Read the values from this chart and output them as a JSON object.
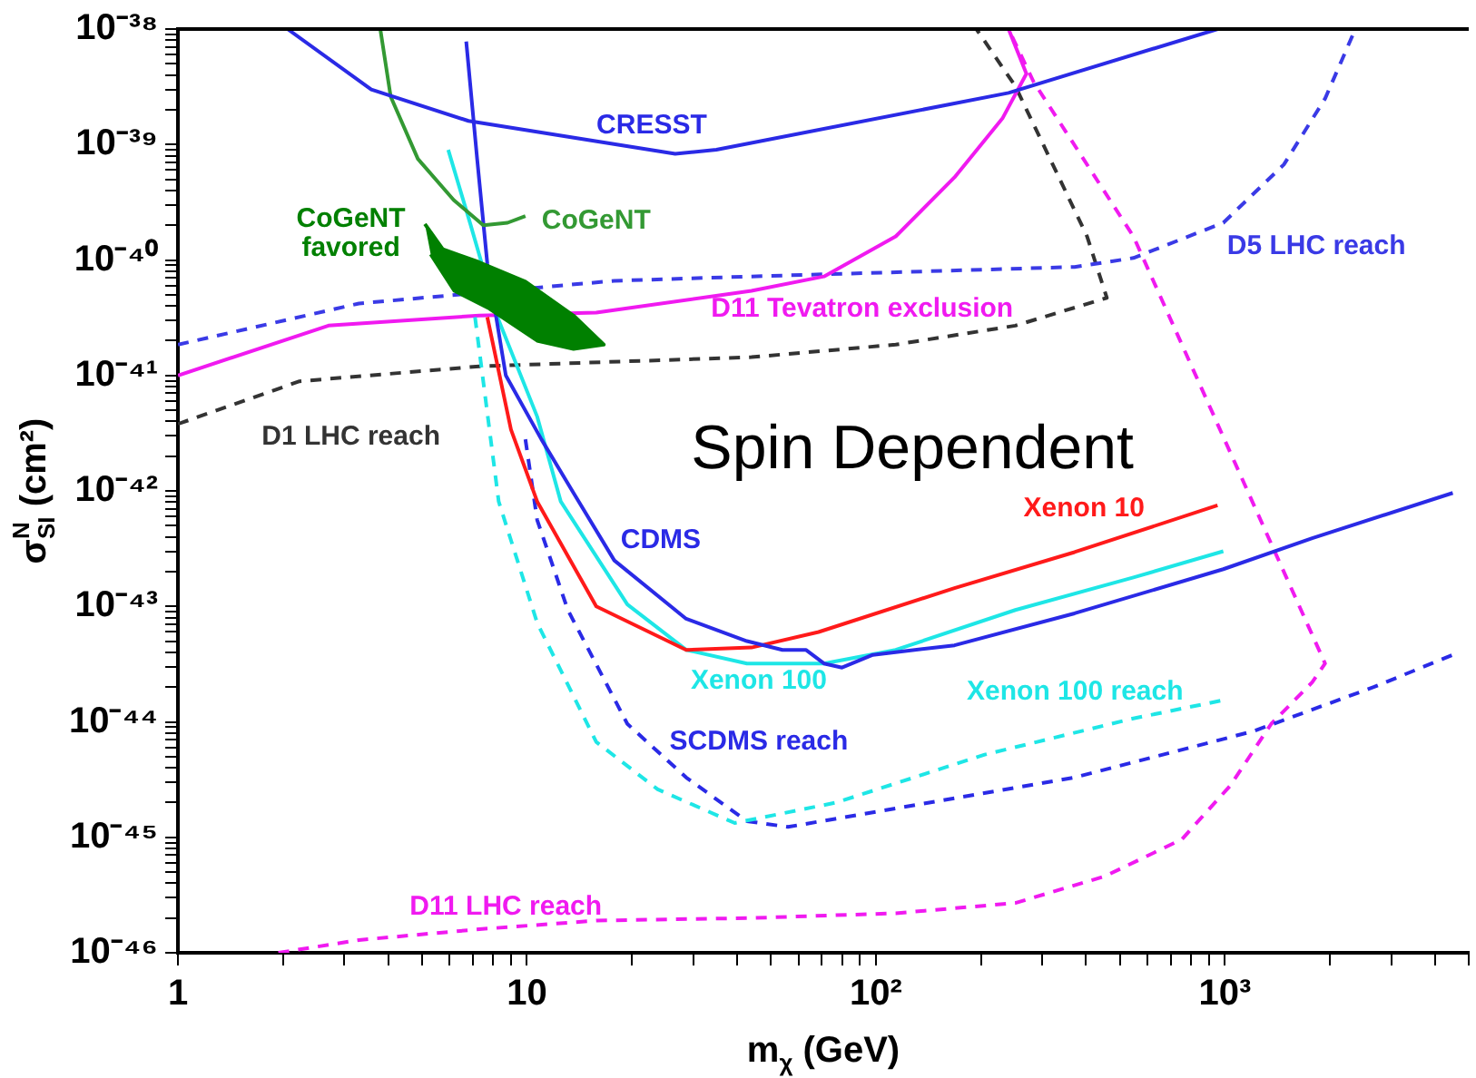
{
  "chart_data": {
    "type": "line",
    "xlabel": "m$_{χ}$ (GeV)",
    "ylabel": "σ$^{N}$$_{SI}$ (cm²)",
    "log": "xy",
    "grid": false,
    "legend": false,
    "marker": "none",
    "xlim": [
      1,
      5000
    ],
    "ylim": [
      1e-46,
      1e-38
    ],
    "xticks": [
      {
        "value": 1,
        "label": "1"
      },
      {
        "value": 2,
        "label": null
      },
      {
        "value": 3,
        "label": null
      },
      {
        "value": 4,
        "label": null
      },
      {
        "value": 5,
        "label": null
      },
      {
        "value": 6,
        "label": null
      },
      {
        "value": 7,
        "label": null
      },
      {
        "value": 8,
        "label": null
      },
      {
        "value": 9,
        "label": null
      },
      {
        "value": 10,
        "label": "10"
      },
      {
        "value": 20,
        "label": null
      },
      {
        "value": 30,
        "label": null
      },
      {
        "value": 40,
        "label": null
      },
      {
        "value": 50,
        "label": null
      },
      {
        "value": 60,
        "label": null
      },
      {
        "value": 70,
        "label": null
      },
      {
        "value": 80,
        "label": null
      },
      {
        "value": 90,
        "label": null
      },
      {
        "value": 100,
        "label": "10²"
      },
      {
        "value": 200,
        "label": null
      },
      {
        "value": 300,
        "label": null
      },
      {
        "value": 400,
        "label": null
      },
      {
        "value": 500,
        "label": null
      },
      {
        "value": 600,
        "label": null
      },
      {
        "value": 700,
        "label": null
      },
      {
        "value": 800,
        "label": null
      },
      {
        "value": 900,
        "label": null
      },
      {
        "value": 1000,
        "label": "10³"
      },
      {
        "value": 2000,
        "label": null
      },
      {
        "value": 3000,
        "label": null
      },
      {
        "value": 4000,
        "label": null
      },
      {
        "value": 5000,
        "label": null
      }
    ],
    "yticks": [
      {
        "value": 1e-46,
        "label": "10⁻⁴⁶"
      },
      {
        "value": 2e-46,
        "label": null
      },
      {
        "value": 3e-46,
        "label": null
      },
      {
        "value": 4e-46,
        "label": null
      },
      {
        "value": 5e-46,
        "label": null
      },
      {
        "value": 6e-46,
        "label": null
      },
      {
        "value": 7e-46,
        "label": null
      },
      {
        "value": 8e-46,
        "label": null
      },
      {
        "value": 9e-46,
        "label": null
      },
      {
        "value": 1e-45,
        "label": "10⁻⁴⁵"
      },
      {
        "value": 2e-45,
        "label": null
      },
      {
        "value": 3e-45,
        "label": null
      },
      {
        "value": 4e-45,
        "label": null
      },
      {
        "value": 5e-45,
        "label": null
      },
      {
        "value": 6e-45,
        "label": null
      },
      {
        "value": 7e-45,
        "label": null
      },
      {
        "value": 8e-45,
        "label": null
      },
      {
        "value": 9e-45,
        "label": null
      },
      {
        "value": 1e-44,
        "label": "10⁻⁴⁴"
      },
      {
        "value": 2e-44,
        "label": null
      },
      {
        "value": 3e-44,
        "label": null
      },
      {
        "value": 4e-44,
        "label": null
      },
      {
        "value": 5e-44,
        "label": null
      },
      {
        "value": 6e-44,
        "label": null
      },
      {
        "value": 7e-44,
        "label": null
      },
      {
        "value": 8e-44,
        "label": null
      },
      {
        "value": 9e-44,
        "label": null
      },
      {
        "value": 1e-43,
        "label": "10⁻⁴³"
      },
      {
        "value": 2e-43,
        "label": null
      },
      {
        "value": 3e-43,
        "label": null
      },
      {
        "value": 4e-43,
        "label": null
      },
      {
        "value": 5e-43,
        "label": null
      },
      {
        "value": 6e-43,
        "label": null
      },
      {
        "value": 7e-43,
        "label": null
      },
      {
        "value": 8e-43,
        "label": null
      },
      {
        "value": 9e-43,
        "label": null
      },
      {
        "value": 1e-42,
        "label": "10⁻⁴²"
      },
      {
        "value": 2e-42,
        "label": null
      },
      {
        "value": 3e-42,
        "label": null
      },
      {
        "value": 4e-42,
        "label": null
      },
      {
        "value": 5e-42,
        "label": null
      },
      {
        "value": 6e-42,
        "label": null
      },
      {
        "value": 7e-42,
        "label": null
      },
      {
        "value": 8e-42,
        "label": null
      },
      {
        "value": 9e-42,
        "label": null
      },
      {
        "value": 1e-41,
        "label": "10⁻⁴¹"
      },
      {
        "value": 2e-41,
        "label": null
      },
      {
        "value": 3e-41,
        "label": null
      },
      {
        "value": 4e-41,
        "label": null
      },
      {
        "value": 5e-41,
        "label": null
      },
      {
        "value": 6e-41,
        "label": null
      },
      {
        "value": 7e-41,
        "label": null
      },
      {
        "value": 8e-41,
        "label": null
      },
      {
        "value": 9e-41,
        "label": null
      },
      {
        "value": 1e-40,
        "label": "10⁻⁴⁰"
      },
      {
        "value": 2e-40,
        "label": null
      },
      {
        "value": 3e-40,
        "label": null
      },
      {
        "value": 4e-40,
        "label": null
      },
      {
        "value": 5e-40,
        "label": null
      },
      {
        "value": 6e-40,
        "label": null
      },
      {
        "value": 7e-40,
        "label": null
      },
      {
        "value": 8e-40,
        "label": null
      },
      {
        "value": 9e-40,
        "label": null
      },
      {
        "value": 1e-39,
        "label": "10⁻³⁹"
      },
      {
        "value": 2e-39,
        "label": null
      },
      {
        "value": 3e-39,
        "label": null
      },
      {
        "value": 4e-39,
        "label": null
      },
      {
        "value": 5e-39,
        "label": null
      },
      {
        "value": 6e-39,
        "label": null
      },
      {
        "value": 7e-39,
        "label": null
      },
      {
        "value": 8e-39,
        "label": null
      },
      {
        "value": 9e-39,
        "label": null
      },
      {
        "value": 1e-38,
        "label": "10⁻³⁸"
      }
    ],
    "annotations": [
      "Spin Dependent"
    ],
    "series": [
      {
        "name": "CRESST",
        "color": "#2a2ae6",
        "line_style": "solid",
        "x": [
          2.06,
          3.58,
          6.8,
          26.6,
          34.9,
          240,
          954
        ],
        "values": [
          1e-38,
          3e-39,
          1.6e-39,
          8.3e-40,
          9e-40,
          2.8e-39,
          1e-38
        ]
      },
      {
        "name": "CoGeNT",
        "color": "#339933",
        "line_style": "solid",
        "x": [
          3.8,
          4.07,
          4.87,
          6.17,
          7.5,
          8.8,
          9.9
        ],
        "values": [
          1e-38,
          2.6e-39,
          7.5e-40,
          3.3e-40,
          2e-40,
          2.1e-40,
          2.4e-40
        ]
      },
      {
        "name": "CoGeNT favored",
        "type": "area",
        "color": "#008000",
        "line_style": "solid",
        "x": [
          5.1,
          5.74,
          7.27,
          9.9,
          13.6,
          16.6,
          13.6,
          10.7,
          7.8,
          6.2,
          5.3
        ],
        "values": [
          2.05e-40,
          1.24e-40,
          9.6e-41,
          6.5e-41,
          3.3e-41,
          1.85e-41,
          1.7e-41,
          2e-41,
          3.8e-41,
          5.4e-41,
          1.12e-40
        ]
      },
      {
        "name": "CDMS",
        "color": "#2a2ae6",
        "line_style": "solid",
        "x": [
          6.7,
          7.2,
          7.7,
          8.7,
          11.0,
          13.6,
          17.8,
          28.6,
          42.7,
          54,
          63,
          71,
          80,
          98,
          168,
          371,
          990,
          1780,
          4500
        ],
        "values": [
          7.8e-39,
          7.5e-40,
          9.3e-41,
          1e-41,
          2.8e-42,
          9.6e-43,
          2.5e-43,
          7.8e-44,
          5e-44,
          4.2e-44,
          4.2e-44,
          3.2e-44,
          2.95e-44,
          3.8e-44,
          4.6e-44,
          8.7e-44,
          2.1e-43,
          3.9e-43,
          9.6e-43
        ]
      },
      {
        "name": "Xenon 10",
        "color": "#ff1a1a",
        "line_style": "solid",
        "x": [
          7.7,
          9.0,
          10.7,
          15.8,
          28.6,
          44,
          68.5,
          168,
          371,
          953
        ],
        "values": [
          3.2e-41,
          3.4e-42,
          8.1e-43,
          1e-43,
          4.2e-44,
          4.4e-44,
          6e-44,
          1.44e-43,
          2.95e-43,
          7.5e-43
        ]
      },
      {
        "name": "Xenon 100",
        "color": "#1ee6e6",
        "line_style": "solid",
        "x": [
          5.95,
          6.9,
          8.2,
          10.7,
          12.5,
          19.4,
          28.6,
          42.7,
          71,
          114,
          251,
          547,
          990
        ],
        "values": [
          9e-40,
          2e-40,
          3.3e-41,
          4.4e-42,
          8.1e-43,
          1.04e-43,
          4.2e-44,
          3.2e-44,
          3.2e-44,
          4.2e-44,
          9.3e-44,
          1.78e-43,
          3e-43
        ]
      },
      {
        "name": "Xenon 100 reach",
        "color": "#1ee6e6",
        "line_style": "dashed",
        "x": [
          7.1,
          8.3,
          10.7,
          15.8,
          23.7,
          39.4,
          77,
          205,
          547,
          990
        ],
        "values": [
          3.2e-41,
          8.1e-43,
          7.2e-44,
          6.7e-45,
          2.6e-45,
          1.33e-45,
          2e-45,
          5.2e-45,
          1.07e-44,
          1.54e-44
        ]
      },
      {
        "name": "SCDMS reach",
        "color": "#2a2ae6",
        "line_style": "dashed",
        "x": [
          9.9,
          10.7,
          13.1,
          19.4,
          28.6,
          42.7,
          56,
          114,
          371,
          1208,
          2670,
          4500
        ],
        "values": [
          2.8e-42,
          5.6e-43,
          9.3e-44,
          9.6e-45,
          3.3e-45,
          1.38e-45,
          1.23e-45,
          1.78e-45,
          3.3e-45,
          8.3e-45,
          2e-44,
          3.8e-44
        ]
      },
      {
        "name": "D11 Tevatron exclusion",
        "color": "#f01af0",
        "line_style": "solid",
        "x": [
          1,
          2.7,
          7.3,
          15.8,
          44,
          71,
          114,
          168,
          231,
          270,
          240
        ],
        "values": [
          1e-41,
          2.7e-41,
          3.3e-41,
          3.5e-41,
          5.4e-41,
          7.2e-41,
          1.6e-40,
          5.2e-40,
          1.7e-39,
          4.1e-39,
          1e-38
        ]
      },
      {
        "name": "D5 LHC reach",
        "color": "#3a3ae6",
        "line_style": "dashed",
        "x": [
          1,
          3.3,
          17.8,
          44,
          371,
          547,
          990,
          1476,
          1938,
          2366
        ],
        "values": [
          1.85e-41,
          4.2e-41,
          6.6e-41,
          7.2e-41,
          8.7e-41,
          1.04e-40,
          2.1e-40,
          6.7e-40,
          2.5e-39,
          1e-38
        ]
      },
      {
        "name": "D1 LHC reach",
        "color": "#333333",
        "line_style": "dashed",
        "x": [
          1,
          2.23,
          7.3,
          44,
          114,
          251,
          459,
          403,
          251,
          194
        ],
        "values": [
          3.8e-42,
          8.9e-42,
          1.2e-41,
          1.44e-41,
          1.85e-41,
          2.7e-41,
          4.7e-41,
          1.6e-40,
          3.2e-39,
          1e-38
        ]
      },
      {
        "name": "D11 LHC reach",
        "color": "#f01af0",
        "line_style": "dashed",
        "x": [
          1.94,
          3.3,
          7.3,
          15.8,
          44,
          114,
          251,
          453,
          753,
          1036,
          1358,
          1780,
          1938,
          1312,
          547,
          283,
          240
        ],
        "values": [
          1e-46,
          1.29e-46,
          1.6e-46,
          1.9e-46,
          2e-46,
          2.2e-46,
          2.7e-46,
          4.6e-46,
          9.6e-46,
          2.8e-45,
          9.6e-45,
          2.2e-44,
          3.2e-44,
          4.4e-43,
          1.6e-40,
          3.5e-39,
          1e-38
        ]
      }
    ]
  }
}
